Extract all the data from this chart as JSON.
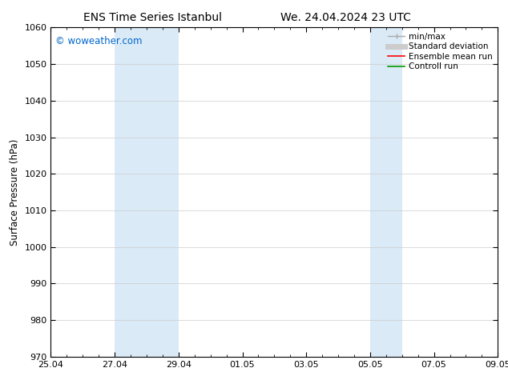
{
  "title_left": "ENS Time Series Istanbul",
  "title_right": "We. 24.04.2024 23 UTC",
  "ylabel": "Surface Pressure (hPa)",
  "watermark": "© woweather.com",
  "watermark_color": "#0066cc",
  "ylim": [
    970,
    1060
  ],
  "yticks": [
    970,
    980,
    990,
    1000,
    1010,
    1020,
    1030,
    1040,
    1050,
    1060
  ],
  "xlim_start": 0,
  "xlim_end": 14,
  "xtick_labels": [
    "25.04",
    "27.04",
    "29.04",
    "01.05",
    "03.05",
    "05.05",
    "07.05",
    "09.05"
  ],
  "xtick_positions": [
    0,
    2,
    4,
    6,
    8,
    10,
    12,
    14
  ],
  "shaded_bands": [
    {
      "x_start": 2,
      "x_end": 4
    },
    {
      "x_start": 10,
      "x_end": 11
    }
  ],
  "shaded_color": "#daeaf7",
  "legend_entries": [
    {
      "label": "min/max",
      "color": "#aaaaaa",
      "lw": 1.0
    },
    {
      "label": "Standard deviation",
      "color": "#cccccc",
      "lw": 5
    },
    {
      "label": "Ensemble mean run",
      "color": "#ff0000",
      "lw": 1.2
    },
    {
      "label": "Controll run",
      "color": "#009900",
      "lw": 1.2
    }
  ],
  "background_color": "#ffffff",
  "grid_color": "#cccccc",
  "title_fontsize": 10,
  "ylabel_fontsize": 8.5,
  "tick_fontsize": 8,
  "watermark_fontsize": 8.5,
  "legend_fontsize": 7.5
}
